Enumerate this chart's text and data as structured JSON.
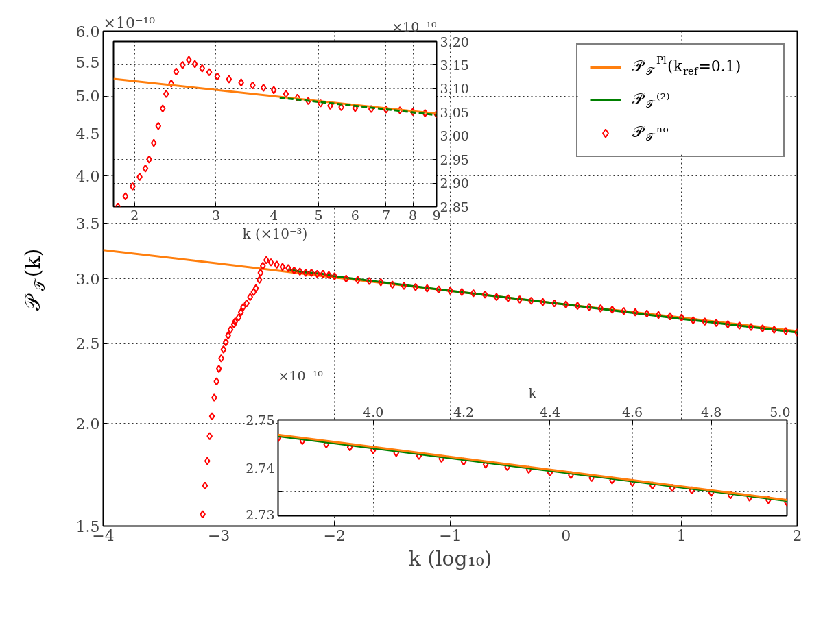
{
  "chart_data": [
    {
      "type": "line",
      "xlabel": "k (log₁₀)",
      "ylabel": "𝒫$_{𝒯}$(k)",
      "annotations": [
        "×10⁻¹⁰"
      ],
      "log": "y",
      "grid": true,
      "legend": "top right",
      "xlim": [
        -4,
        2
      ],
      "xticks": [
        {
          "value": -4,
          "label": "−4"
        },
        {
          "value": -3,
          "label": "−3"
        },
        {
          "value": -2,
          "label": "−2"
        },
        {
          "value": -1,
          "label": "−1"
        },
        0,
        1,
        2
      ],
      "ylim": [
        1.5,
        6.0
      ],
      "yticks": [
        1.5,
        {
          "value": 2,
          "label": "2.0"
        },
        2.5,
        {
          "value": 3,
          "label": "3.0"
        },
        3.5,
        {
          "value": 4,
          "label": "4.0"
        },
        4.5,
        {
          "value": 5,
          "label": "5.0"
        },
        5.5,
        {
          "value": 6,
          "label": "6.0"
        }
      ],
      "series": [
        {
          "name": "𝒫$_{𝒯}$$^{Pl}$(k$_{ref}$=0.1)",
          "color": "#ff7f0e",
          "line_style": "solid",
          "x": [
            -4,
            -3,
            -2,
            -1,
            0,
            1,
            2
          ],
          "values": [
            3.25,
            3.13,
            3.01,
            2.9,
            2.79,
            2.69,
            2.59
          ]
        },
        {
          "name": "𝒫$_{𝒯}$⁽²⁾",
          "color": "#008000",
          "line_style": "solid",
          "x": [
            -2.4,
            -2.3,
            -2.2,
            -2.1,
            -2.0,
            -1,
            0,
            1,
            2
          ],
          "values": [
            3.08,
            3.06,
            3.05,
            3.04,
            3.02,
            2.9,
            2.79,
            2.68,
            2.58
          ]
        },
        {
          "name": "𝒫$_{𝒯}$ⁿᵒ",
          "type": "scatter",
          "color": "#ff0000",
          "marker": "diamond",
          "x": [
            -3.14,
            -3.12,
            -3.1,
            -3.08,
            -3.06,
            -3.04,
            -3.02,
            -3.0,
            -2.98,
            -2.96,
            -2.94,
            -2.92,
            -2.9,
            -2.87,
            -2.86,
            -2.83,
            -2.81,
            -2.79,
            -2.76,
            -2.73,
            -2.7,
            -2.68,
            -2.65,
            -2.64,
            -2.62,
            -2.59,
            -2.55,
            -2.5,
            -2.45,
            -2.4,
            -2.35,
            -2.3,
            -2.25,
            -2.2,
            -2.15,
            -2.1,
            -2.05,
            -2.0,
            -1.9,
            -1.8,
            -1.7,
            -1.6,
            -1.5,
            -1.4,
            -1.3,
            -1.2,
            -1.1,
            -1.0,
            -0.9,
            -0.8,
            -0.7,
            -0.6,
            -0.5,
            -0.4,
            -0.3,
            -0.2,
            -0.1,
            0.0,
            0.1,
            0.2,
            0.3,
            0.4,
            0.5,
            0.6,
            0.7,
            0.8,
            0.9,
            1.0,
            1.1,
            1.2,
            1.3,
            1.4,
            1.5,
            1.6,
            1.7,
            1.8,
            1.9,
            2.0
          ],
          "values": [
            1.55,
            1.68,
            1.8,
            1.93,
            2.04,
            2.15,
            2.25,
            2.33,
            2.4,
            2.46,
            2.51,
            2.56,
            2.6,
            2.64,
            2.66,
            2.69,
            2.73,
            2.77,
            2.8,
            2.85,
            2.89,
            2.92,
            2.99,
            3.05,
            3.11,
            3.16,
            3.14,
            3.12,
            3.1,
            3.09,
            3.07,
            3.06,
            3.05,
            3.05,
            3.04,
            3.04,
            3.03,
            3.02,
            3.0,
            2.99,
            2.98,
            2.97,
            2.95,
            2.94,
            2.93,
            2.92,
            2.91,
            2.9,
            2.89,
            2.88,
            2.87,
            2.85,
            2.84,
            2.83,
            2.82,
            2.81,
            2.8,
            2.79,
            2.78,
            2.77,
            2.76,
            2.75,
            2.74,
            2.73,
            2.72,
            2.71,
            2.7,
            2.69,
            2.67,
            2.66,
            2.65,
            2.64,
            2.63,
            2.62,
            2.61,
            2.6,
            2.59,
            2.58
          ]
        }
      ]
    },
    {
      "type": "line",
      "xlabel": "k (×10⁻³)",
      "annotations": [
        "×10⁻¹⁰"
      ],
      "log": "x",
      "grid": true,
      "xlim": [
        1.8,
        9
      ],
      "xticks": [
        2,
        3,
        4,
        5,
        6,
        7,
        8,
        9
      ],
      "ylim": [
        2.85,
        3.2
      ],
      "yticks": [
        2.85,
        {
          "value": 2.9,
          "label": "2.90"
        },
        2.95,
        {
          "value": 3.0,
          "label": "3.00"
        },
        3.05,
        {
          "value": 3.1,
          "label": "3.10"
        },
        3.15,
        {
          "value": 3.2,
          "label": "3.20"
        }
      ],
      "series": [
        {
          "type": "scatter",
          "color": "#ff0000",
          "marker": "diamond",
          "x": [
            1.84,
            1.91,
            1.98,
            2.05,
            2.11,
            2.15,
            2.2,
            2.25,
            2.3,
            2.34,
            2.4,
            2.46,
            2.54,
            2.62,
            2.7,
            2.8,
            2.9,
            3.02,
            3.2,
            3.4,
            3.6,
            3.8,
            4.0,
            4.25,
            4.5,
            4.75,
            5.05,
            5.3,
            5.6,
            6.0,
            6.5,
            7.0,
            7.5,
            8.0,
            8.5,
            9.0
          ],
          "values": [
            2.85,
            2.872,
            2.893,
            2.913,
            2.931,
            2.95,
            2.985,
            3.021,
            3.058,
            3.089,
            3.111,
            3.136,
            3.15,
            3.161,
            3.152,
            3.143,
            3.135,
            3.126,
            3.12,
            3.113,
            3.107,
            3.102,
            3.097,
            3.089,
            3.081,
            3.074,
            3.069,
            3.064,
            3.061,
            3.059,
            3.057,
            3.056,
            3.054,
            3.051,
            3.048,
            3.046
          ]
        },
        {
          "color": "#ff7f0e",
          "line_style": "solid",
          "x": [
            1.8,
            9
          ],
          "values": [
            3.121,
            3.047
          ]
        },
        {
          "color": "#008000",
          "line_style": "dashed",
          "x": [
            4.12,
            5.98,
            9
          ],
          "values": [
            3.081,
            3.064,
            3.044
          ]
        }
      ]
    },
    {
      "type": "line",
      "xlabel": "k",
      "annotations": [
        "×10⁻¹⁰"
      ],
      "log": "x",
      "grid": true,
      "xlim": [
        3.8,
        5.0
      ],
      "xticks": [
        {
          "value": 4.0,
          "label": "4.0"
        },
        4.2,
        4.4,
        4.6,
        4.8,
        {
          "value": 5.0,
          "label": "5.0"
        }
      ],
      "ylim": [
        2.73,
        2.75
      ],
      "yticks": [
        2.73,
        {
          "value": 2.735,
          "label": null
        },
        2.74,
        {
          "value": 2.745,
          "label": null
        },
        2.75
      ],
      "series": [
        {
          "type": "scatter",
          "color": "#ff0000",
          "marker": "diamond",
          "x": [
            3.8,
            3.85,
            3.9,
            3.95,
            4.0,
            4.05,
            4.1,
            4.15,
            4.2,
            4.25,
            4.3,
            4.35,
            4.4,
            4.45,
            4.5,
            4.55,
            4.6,
            4.65,
            4.7,
            4.75,
            4.8,
            4.85,
            4.9,
            4.95,
            5.0
          ],
          "values": [
            2.7462,
            2.7456,
            2.7449,
            2.7443,
            2.7437,
            2.7431,
            2.7425,
            2.7419,
            2.7413,
            2.7407,
            2.7402,
            2.7396,
            2.739,
            2.7385,
            2.7379,
            2.7374,
            2.7369,
            2.7363,
            2.7358,
            2.7353,
            2.7348,
            2.7343,
            2.7338,
            2.7333,
            2.7328
          ]
        },
        {
          "color": "#008000",
          "line_style": "solid",
          "x": [
            3.8,
            5.0
          ],
          "values": [
            2.7466,
            2.7331
          ]
        },
        {
          "color": "#ff7f0e",
          "line_style": "solid",
          "x": [
            3.8,
            5.0
          ],
          "values": [
            2.7469,
            2.7333
          ]
        }
      ]
    }
  ]
}
